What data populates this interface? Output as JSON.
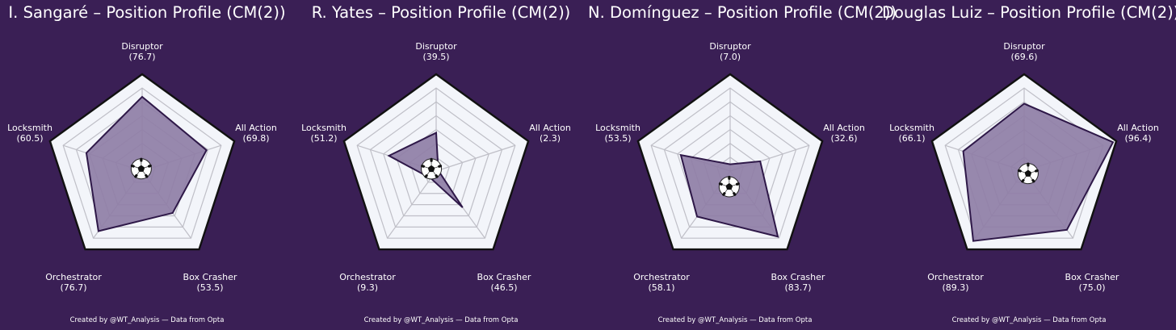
{
  "colors": {
    "background": "#3a1f55",
    "ring_fill": "#f3f5fa",
    "grid": "#bfbfc7",
    "outline": "#111111",
    "area_fill": "#8f7ea6",
    "area_stroke": "#2e1848",
    "text": "#ffffff"
  },
  "icon": "soccer-ball-icon",
  "value_format": "({v})",
  "credit": "Created by @WT_Analysis — Data from Opta",
  "chart_data": [
    {
      "type": "radar",
      "title": "I. Sangaré – Position Profile (CM(2))",
      "axes": [
        "Disruptor",
        "All Action",
        "Box Crasher",
        "Orchestrator",
        "Locksmith"
      ],
      "values": [
        76.7,
        69.8,
        53.5,
        76.7,
        60.5
      ],
      "value_labels": [
        "(76.7)",
        "(69.8)",
        "(53.5)",
        "(76.7)",
        "(60.5)"
      ],
      "range": [
        0,
        100
      ]
    },
    {
      "type": "radar",
      "title": "R. Yates – Position Profile (CM(2))",
      "axes": [
        "Disruptor",
        "All Action",
        "Box Crasher",
        "Orchestrator",
        "Locksmith"
      ],
      "values": [
        39.5,
        2.3,
        46.5,
        9.3,
        51.2
      ],
      "value_labels": [
        "(39.5)",
        "(2.3)",
        "(46.5)",
        "(9.3)",
        "(51.2)"
      ],
      "range": [
        0,
        100
      ]
    },
    {
      "type": "radar",
      "title": "N. Domínguez – Position Profile (CM(2))",
      "axes": [
        "Disruptor",
        "All Action",
        "Box Crasher",
        "Orchestrator",
        "Locksmith"
      ],
      "values": [
        7.0,
        32.6,
        83.7,
        58.1,
        53.5
      ],
      "value_labels": [
        "(7.0)",
        "(32.6)",
        "(83.7)",
        "(58.1)",
        "(53.5)"
      ],
      "range": [
        0,
        100
      ]
    },
    {
      "type": "radar",
      "title": "Douglas Luiz – Position Profile (CM(2))",
      "axes": [
        "Disruptor",
        "All Action",
        "Box Crasher",
        "Orchestrator",
        "Locksmith"
      ],
      "values": [
        69.6,
        96.4,
        75.0,
        89.3,
        66.1
      ],
      "value_labels": [
        "(69.6)",
        "(96.4)",
        "(75.0)",
        "(89.3)",
        "(66.1)"
      ],
      "range": [
        0,
        100
      ]
    }
  ]
}
